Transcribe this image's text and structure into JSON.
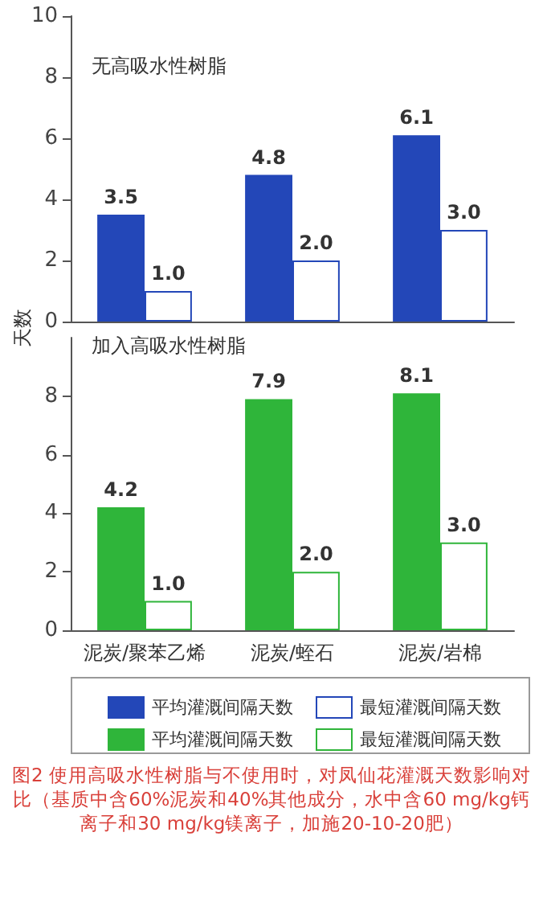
{
  "chart_data": [
    {
      "type": "bar",
      "title": "无高吸水性树脂",
      "ylabel": "天数",
      "categories": [
        null,
        null,
        null
      ],
      "tick_labels": "y",
      "ylim": [
        0,
        10
      ],
      "yticks": [
        0,
        2,
        4,
        6,
        8,
        10
      ],
      "legend": "bottom",
      "series": [
        {
          "name": "平均灌溉间隔天数",
          "color": "#2347b8",
          "values": [
            3.5,
            4.8,
            6.1
          ],
          "value_labels": [
            "3.5",
            "4.8",
            "6.1"
          ]
        },
        {
          "name": "最短灌溉间隔天数",
          "color": "#ffffff",
          "values": [
            1,
            2,
            3
          ],
          "value_labels": [
            "1.0",
            "2.0",
            "3.0"
          ]
        }
      ]
    },
    {
      "type": "bar",
      "title": "加入高吸水性树脂",
      "categories": [
        "泥炭/聚苯乙烯",
        "泥炭/蛭石",
        "泥炭/岩棉"
      ],
      "ylim": [
        0,
        10
      ],
      "yticks": [
        0,
        2,
        4,
        6,
        8
      ],
      "legend": "bottom",
      "series": [
        {
          "name": "平均灌溉间隔天数",
          "color": "#2fb53a",
          "values": [
            4.2,
            7.9,
            8.1
          ],
          "value_labels": [
            "4.2",
            "7.9",
            "8.1"
          ]
        },
        {
          "name": "最短灌溉间隔天数",
          "color": "#ffffff",
          "values": [
            1,
            2,
            3
          ],
          "value_labels": [
            "1.0",
            "2.0",
            "3.0"
          ]
        }
      ],
      "annotations": [
        "图2 使用高吸水性树脂与不使用时，对凤仙花灌溉天数影响对比（基质中含60%泥炭和40%其他成分，水中含60 mg/kg钙离子和30 mg/kg镁离子，加施20-10-20肥）"
      ]
    }
  ]
}
